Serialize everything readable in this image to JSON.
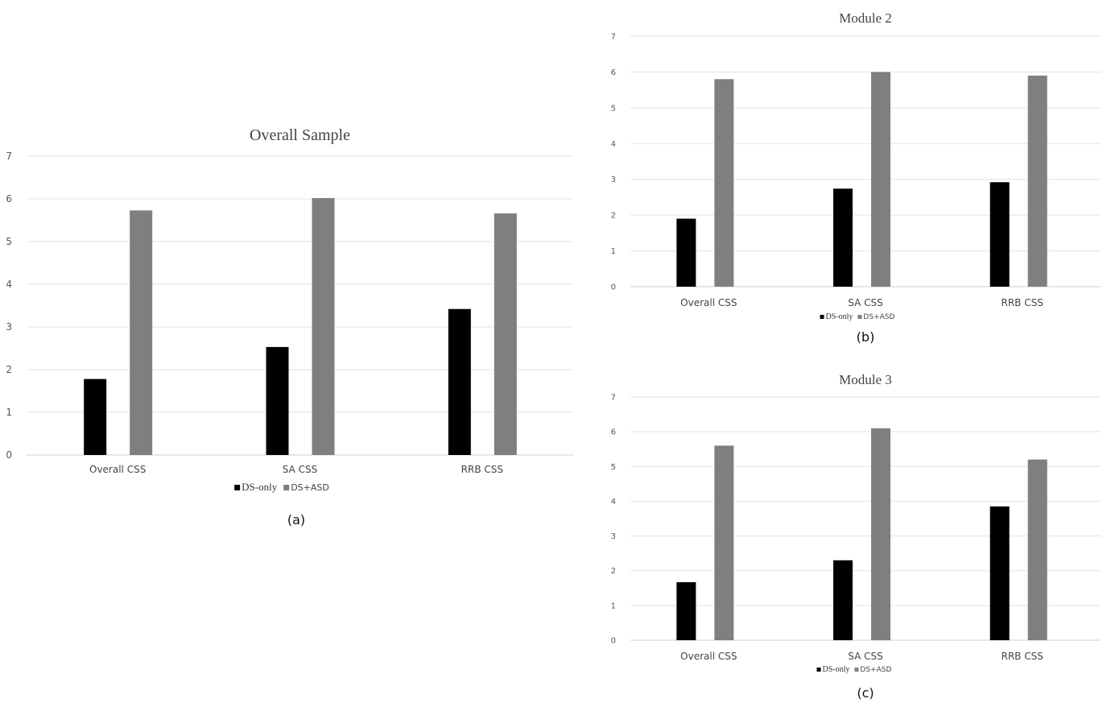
{
  "colors": {
    "ds_only": "#000000",
    "ds_asd": "#7f7f7f",
    "grid": "#e3e3e3",
    "axis": "#cfcfcf"
  },
  "chart_data": [
    {
      "id": "a",
      "type": "bar",
      "title": "Overall Sample",
      "caption": "(a)",
      "categories": [
        "Overall CSS",
        "SA CSS",
        "RRB CSS"
      ],
      "series": [
        {
          "name": "DS-only",
          "values": [
            1.78,
            2.53,
            3.42
          ]
        },
        {
          "name": "DS+ASD",
          "values": [
            5.73,
            6.02,
            5.66
          ]
        }
      ],
      "ylim": [
        0,
        7
      ],
      "yticks": [
        0,
        1,
        2,
        3,
        4,
        5,
        6,
        7
      ],
      "grid": true,
      "legend": "bottom"
    },
    {
      "id": "b",
      "type": "bar",
      "title": "Module 2",
      "caption": "(b)",
      "categories": [
        "Overall CSS",
        "SA CSS",
        "RRB CSS"
      ],
      "series": [
        {
          "name": "DS-only",
          "values": [
            1.9,
            2.74,
            2.92
          ]
        },
        {
          "name": "DS+ASD",
          "values": [
            5.8,
            6.0,
            5.9
          ]
        }
      ],
      "ylim": [
        0,
        7
      ],
      "yticks": [
        0,
        1,
        2,
        3,
        4,
        5,
        6,
        7
      ],
      "grid": true,
      "legend": "bottom"
    },
    {
      "id": "c",
      "type": "bar",
      "title": "Module 3",
      "caption": "(c)",
      "categories": [
        "Overall CSS",
        "SA CSS",
        "RRB CSS"
      ],
      "series": [
        {
          "name": "DS-only",
          "values": [
            1.67,
            2.3,
            3.85
          ]
        },
        {
          "name": "DS+ASD",
          "values": [
            5.6,
            6.1,
            5.2
          ]
        }
      ],
      "ylim": [
        0,
        7
      ],
      "yticks": [
        0,
        1,
        2,
        3,
        4,
        5,
        6,
        7
      ],
      "grid": true,
      "legend": "bottom"
    }
  ]
}
